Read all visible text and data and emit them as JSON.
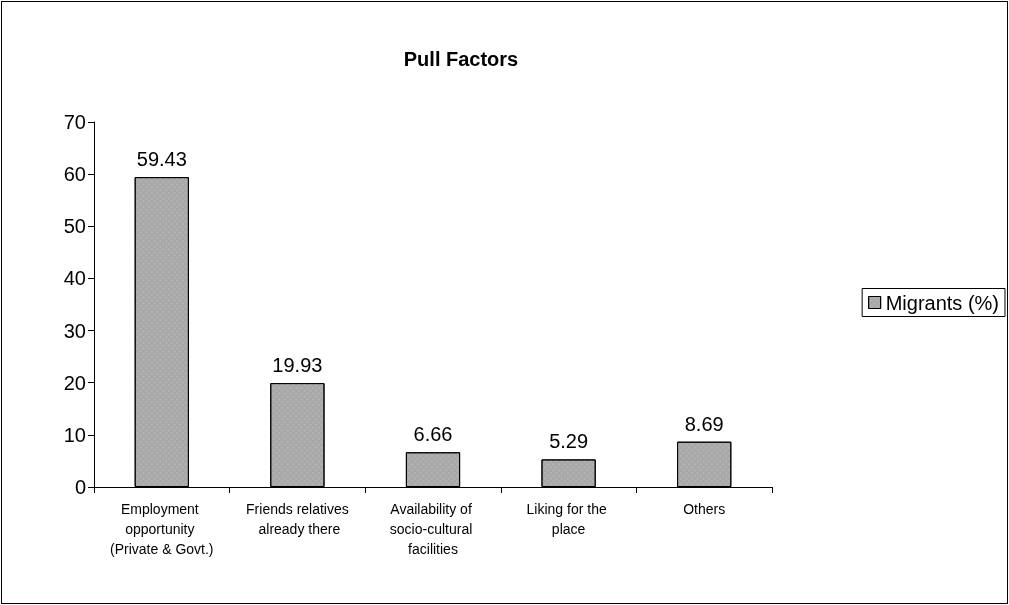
{
  "chart_data": {
    "type": "bar",
    "title": "Pull Factors",
    "categories": [
      "Employment opportunity (Private & Govt.)",
      "Friends relatives already there",
      "Availability of socio-cultural facilities",
      "Liking for the place",
      "Others"
    ],
    "series": [
      {
        "name": "Migrants (%)",
        "color": "#a8a8a8",
        "values": [
          59.43,
          19.93,
          6.66,
          5.29,
          8.69
        ]
      }
    ],
    "ylim": [
      0,
      70
    ],
    "yticks": [
      0,
      10,
      20,
      30,
      40,
      50,
      60,
      70
    ],
    "grid": false,
    "legend": "right",
    "data_labels": true
  }
}
